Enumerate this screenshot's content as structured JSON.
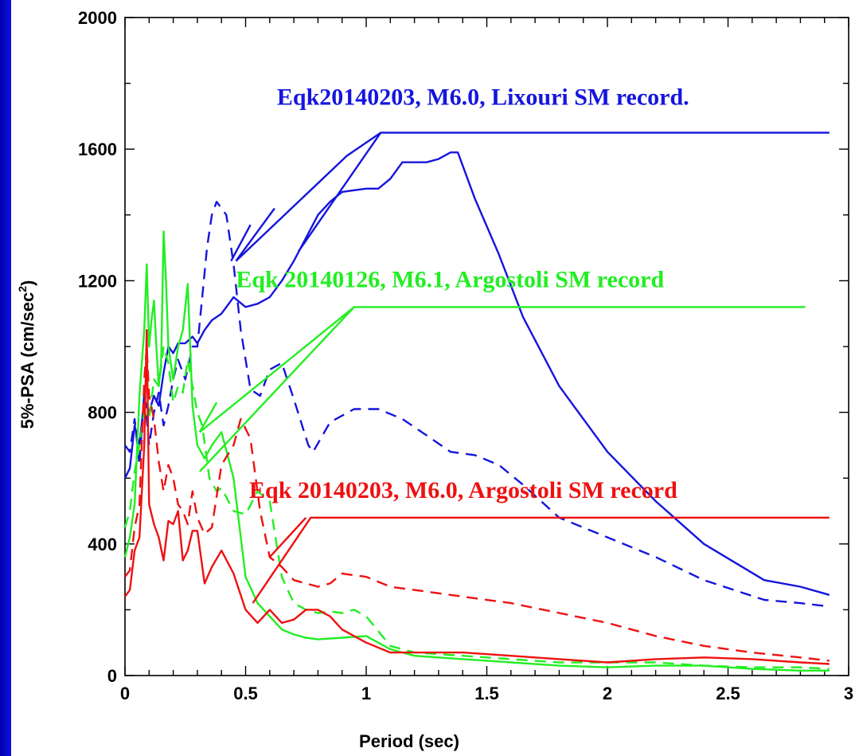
{
  "chart_data": {
    "type": "line",
    "title": "",
    "xlabel": "Period (sec)",
    "ylabel": "5%-PSA (cm/sec",
    "ylabel_superscript": "2",
    "ylabel_close": ")",
    "xlim": [
      0,
      3
    ],
    "ylim": [
      0,
      2000
    ],
    "xticks": [
      0,
      0.5,
      1,
      1.5,
      2,
      2.5,
      3
    ],
    "xtick_labels": [
      "0",
      "0.5",
      "1",
      "1.5",
      "2",
      "2.5",
      "3"
    ],
    "yticks": [
      0,
      400,
      800,
      1200,
      1600,
      2000
    ],
    "ytick_labels": [
      "0",
      "400",
      "800",
      "1200",
      "1600",
      "2000"
    ],
    "grid": false,
    "annotations": [
      {
        "text": "Eqk20140203, M6.0, Lixouri SM record.",
        "color": "#1515dd",
        "x": 0.63,
        "y": 1735
      },
      {
        "text": "Eqk 20140126, M6.1, Argostoli SM record",
        "color": "#22ee22",
        "x": 0.46,
        "y": 1180
      },
      {
        "text": "Eqk 20140203, M6.0, Argostoli SM record",
        "color": "#ee1111",
        "x": 0.515,
        "y": 540
      }
    ],
    "series": [
      {
        "group": "lixouri",
        "style": "solid",
        "color": "#1515dd",
        "x": [
          0,
          0.02,
          0.04,
          0.06,
          0.08,
          0.1,
          0.12,
          0.14,
          0.16,
          0.18,
          0.2,
          0.22,
          0.25,
          0.28,
          0.3,
          0.33,
          0.36,
          0.4,
          0.45,
          0.5,
          0.55,
          0.6,
          0.65,
          0.7,
          0.75,
          0.8,
          0.85,
          0.9,
          0.95,
          1.0,
          1.05,
          1.1,
          1.15,
          1.2,
          1.25,
          1.3,
          1.35,
          1.38,
          1.45,
          1.55,
          1.65,
          1.8,
          2.0,
          2.2,
          2.4,
          2.65,
          2.8,
          2.92
        ],
        "y": [
          600,
          630,
          760,
          700,
          840,
          800,
          850,
          820,
          920,
          1000,
          980,
          1010,
          1010,
          1030,
          1010,
          1050,
          1080,
          1100,
          1150,
          1120,
          1130,
          1150,
          1200,
          1260,
          1330,
          1400,
          1440,
          1470,
          1475,
          1480,
          1480,
          1510,
          1560,
          1560,
          1560,
          1570,
          1590,
          1590,
          1450,
          1280,
          1090,
          880,
          680,
          530,
          400,
          290,
          270,
          245
        ]
      },
      {
        "group": "lixouri",
        "style": "dashed",
        "color": "#1515dd",
        "x": [
          0,
          0.02,
          0.04,
          0.06,
          0.08,
          0.1,
          0.12,
          0.14,
          0.16,
          0.18,
          0.2,
          0.22,
          0.25,
          0.28,
          0.3,
          0.32,
          0.34,
          0.36,
          0.38,
          0.42,
          0.45,
          0.48,
          0.52,
          0.56,
          0.6,
          0.65,
          0.7,
          0.76,
          0.78,
          0.85,
          0.95,
          1.05,
          1.15,
          1.25,
          1.35,
          1.45,
          1.55,
          1.65,
          1.8,
          2.0,
          2.2,
          2.4,
          2.65,
          2.8,
          2.92
        ],
        "y": [
          700,
          680,
          780,
          640,
          860,
          700,
          800,
          860,
          760,
          820,
          900,
          960,
          900,
          1000,
          1000,
          1150,
          1300,
          1400,
          1440,
          1400,
          1250,
          1050,
          870,
          850,
          930,
          950,
          840,
          700,
          680,
          770,
          810,
          810,
          780,
          730,
          680,
          670,
          640,
          580,
          480,
          420,
          360,
          290,
          230,
          220,
          210
        ]
      },
      {
        "group": "argostoli_0126",
        "style": "solid",
        "color": "#22ee22",
        "x": [
          0,
          0.02,
          0.04,
          0.06,
          0.08,
          0.09,
          0.1,
          0.11,
          0.12,
          0.13,
          0.14,
          0.15,
          0.16,
          0.17,
          0.18,
          0.2,
          0.22,
          0.24,
          0.26,
          0.28,
          0.3,
          0.33,
          0.36,
          0.4,
          0.45,
          0.5,
          0.55,
          0.6,
          0.65,
          0.7,
          0.75,
          0.8,
          0.9,
          1.0,
          1.1,
          1.2,
          1.4,
          1.6,
          1.8,
          2.0,
          2.2,
          2.4,
          2.6,
          2.8,
          2.92
        ],
        "y": [
          360,
          420,
          520,
          850,
          1050,
          1250,
          1000,
          1080,
          1140,
          1000,
          880,
          950,
          1350,
          1200,
          1000,
          900,
          1000,
          1050,
          1190,
          820,
          700,
          660,
          700,
          740,
          600,
          300,
          220,
          180,
          140,
          125,
          115,
          110,
          115,
          120,
          80,
          60,
          50,
          40,
          30,
          25,
          30,
          30,
          20,
          15,
          15
        ]
      },
      {
        "group": "argostoli_0126",
        "style": "dashed",
        "color": "#22ee22",
        "x": [
          0,
          0.02,
          0.04,
          0.06,
          0.08,
          0.1,
          0.12,
          0.14,
          0.16,
          0.18,
          0.2,
          0.22,
          0.24,
          0.26,
          0.28,
          0.3,
          0.32,
          0.35,
          0.38,
          0.4,
          0.45,
          0.5,
          0.55,
          0.6,
          0.65,
          0.7,
          0.75,
          0.8,
          0.85,
          0.9,
          0.95,
          1.0,
          1.1,
          1.2,
          1.4,
          1.6,
          1.8,
          2.0,
          2.2,
          2.4,
          2.6,
          2.8,
          2.92
        ],
        "y": [
          450,
          500,
          620,
          700,
          800,
          780,
          900,
          880,
          1000,
          950,
          830,
          880,
          860,
          960,
          880,
          800,
          760,
          600,
          560,
          570,
          500,
          490,
          560,
          530,
          300,
          220,
          200,
          190,
          195,
          190,
          200,
          180,
          90,
          70,
          60,
          50,
          40,
          40,
          40,
          30,
          25,
          25,
          20
        ]
      },
      {
        "group": "argostoli_0203",
        "style": "solid",
        "color": "#ee1111",
        "x": [
          0,
          0.02,
          0.04,
          0.06,
          0.08,
          0.09,
          0.1,
          0.12,
          0.14,
          0.16,
          0.18,
          0.2,
          0.22,
          0.24,
          0.26,
          0.28,
          0.3,
          0.33,
          0.36,
          0.4,
          0.45,
          0.5,
          0.55,
          0.6,
          0.65,
          0.7,
          0.75,
          0.8,
          0.85,
          0.9,
          1.0,
          1.1,
          1.2,
          1.4,
          1.6,
          1.8,
          2.0,
          2.2,
          2.4,
          2.6,
          2.8,
          2.92
        ],
        "y": [
          240,
          260,
          380,
          420,
          700,
          1050,
          520,
          460,
          420,
          350,
          470,
          460,
          500,
          350,
          380,
          440,
          440,
          280,
          330,
          380,
          310,
          200,
          160,
          200,
          160,
          170,
          200,
          200,
          180,
          140,
          100,
          70,
          70,
          70,
          60,
          50,
          40,
          50,
          55,
          50,
          40,
          35
        ]
      },
      {
        "group": "argostoli_0203",
        "style": "dashed",
        "color": "#ee1111",
        "x": [
          0,
          0.02,
          0.04,
          0.06,
          0.08,
          0.09,
          0.1,
          0.12,
          0.14,
          0.16,
          0.18,
          0.2,
          0.22,
          0.24,
          0.26,
          0.28,
          0.3,
          0.33,
          0.36,
          0.4,
          0.45,
          0.48,
          0.52,
          0.56,
          0.6,
          0.65,
          0.7,
          0.75,
          0.8,
          0.85,
          0.9,
          1.0,
          1.1,
          1.2,
          1.4,
          1.6,
          1.8,
          2.0,
          2.2,
          2.4,
          2.6,
          2.8,
          2.92
        ],
        "y": [
          300,
          320,
          450,
          520,
          900,
          1000,
          850,
          780,
          650,
          560,
          640,
          600,
          520,
          500,
          460,
          560,
          480,
          430,
          450,
          640,
          700,
          780,
          720,
          500,
          360,
          330,
          290,
          280,
          270,
          280,
          310,
          300,
          270,
          260,
          240,
          220,
          190,
          160,
          120,
          90,
          70,
          55,
          45
        ]
      },
      {
        "group": "lixouri",
        "style": "envelope",
        "color": "#1515dd",
        "x": [
          0.46,
          0.92,
          1.06,
          2.0,
          2.92
        ],
        "y": [
          1260,
          1580,
          1650,
          1650,
          1650
        ]
      },
      {
        "group": "argostoli_0126",
        "style": "envelope",
        "color": "#22ee22",
        "x": [
          0.31,
          0.95,
          2.82
        ],
        "y": [
          620,
          1120,
          1120
        ]
      },
      {
        "group": "argostoli_0126",
        "style": "envelope",
        "color": "#22ee22",
        "x": [
          0.31,
          0.95
        ],
        "y": [
          740,
          1120
        ]
      },
      {
        "group": "argostoli_0203",
        "style": "envelope",
        "color": "#ee1111",
        "x": [
          0.53,
          0.77,
          2.92
        ],
        "y": [
          220,
          480,
          480
        ]
      },
      {
        "group": "lixouri",
        "style": "envelope",
        "color": "#1515dd",
        "x": [
          0.46,
          0.62
        ],
        "y": [
          1260,
          1420
        ]
      },
      {
        "group": "lixouri",
        "style": "envelope",
        "color": "#1515dd",
        "x": [
          1.06,
          0.72
        ],
        "y": [
          1650,
          1290
        ]
      },
      {
        "group": "lixouri",
        "style": "envelope",
        "color": "#1515dd",
        "x": [
          0.44,
          0.52
        ],
        "y": [
          1260,
          1370
        ]
      },
      {
        "group": "argostoli_0126",
        "style": "envelope",
        "color": "#22ee22",
        "x": [
          0.31,
          0.38
        ],
        "y": [
          740,
          830
        ]
      },
      {
        "group": "argostoli_0203",
        "style": "envelope",
        "color": "#ee1111",
        "x": [
          0.6,
          0.75
        ],
        "y": [
          360,
          480
        ]
      }
    ]
  }
}
